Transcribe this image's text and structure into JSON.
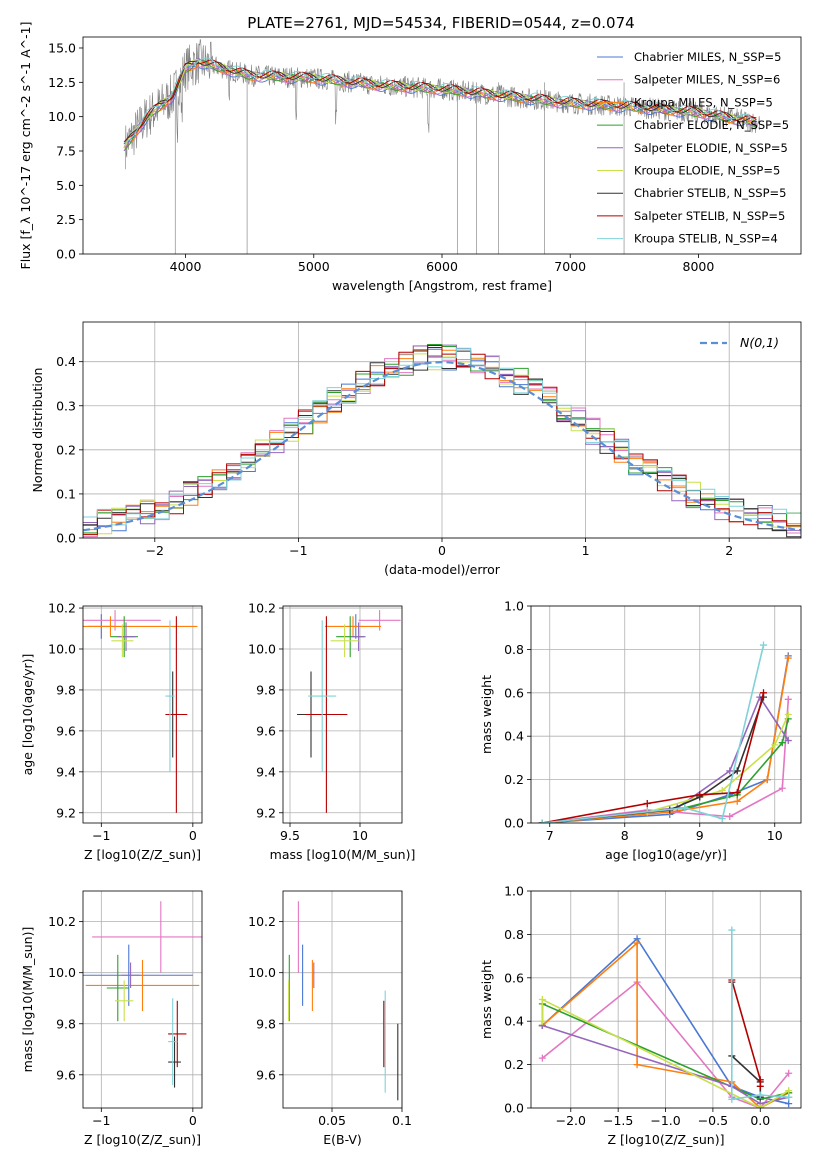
{
  "figure": {
    "title": "PLATE=2761, MJD=54534, FIBERID=0544, z=0.074"
  },
  "chart_data": [
    {
      "id": "spectrum",
      "type": "line",
      "title": "PLATE=2761, MJD=54534, FIBERID=0544, z=0.074",
      "xlabel": "wavelength [Angstrom, rest frame]",
      "ylabel": "Flux [f_λ 10^-17 erg cm^-2 s^-1 A^-1]",
      "xlim": [
        3200,
        8800
      ],
      "ylim": [
        0,
        15.8
      ],
      "xticks": [
        4000,
        5000,
        6000,
        7000,
        8000
      ],
      "yticks": [
        0.0,
        2.5,
        5.0,
        7.5,
        10.0,
        12.5,
        15.0
      ],
      "legend_placement": "upper-right",
      "series": [
        {
          "name": "Chabrier MILES, N_SSP=5",
          "color": "#4a78d4"
        },
        {
          "name": "Salpeter MILES, N_SSP=6",
          "color": "#e377c2"
        },
        {
          "name": "Kroupa MILES, N_SSP=5",
          "color": "#ff7f0e"
        },
        {
          "name": "Chabrier ELODIE, N_SSP=5",
          "color": "#2ca02c"
        },
        {
          "name": "Salpeter ELODIE, N_SSP=5",
          "color": "#9467bd"
        },
        {
          "name": "Kroupa ELODIE, N_SSP=5",
          "color": "#c9e04a"
        },
        {
          "name": "Chabrier STELIB, N_SSP=5",
          "color": "#333333"
        },
        {
          "name": "Salpeter STELIB, N_SSP=5",
          "color": "#b30000"
        },
        {
          "name": "Kroupa STELIB, N_SSP=4",
          "color": "#7fd3d8"
        }
      ],
      "continuum_x": [
        3500,
        3700,
        3900,
        4000,
        4100,
        4300,
        4500,
        5000,
        5500,
        6000,
        6500,
        7000,
        7500,
        8000,
        8500
      ],
      "continuum_y": [
        7.5,
        10.0,
        11.5,
        13.5,
        14.0,
        13.5,
        13.0,
        12.8,
        12.3,
        12.0,
        11.5,
        11.0,
        10.7,
        10.3,
        9.5
      ],
      "grid": false
    },
    {
      "id": "residual-hist",
      "type": "histogram",
      "xlabel": "(data-model)/error",
      "ylabel": "Normed distribution",
      "xlim": [
        -2.5,
        2.5
      ],
      "ylim": [
        0,
        0.49
      ],
      "xticks": [
        -2,
        -1,
        0,
        1,
        2
      ],
      "yticks": [
        0.0,
        0.1,
        0.2,
        0.3,
        0.4
      ],
      "legend": [
        "N(0,1)"
      ],
      "legend_placement": "upper-right",
      "reference_curve": "normal(0,1)",
      "bin_width": 0.1,
      "grid": true
    },
    {
      "id": "age-vs-Z",
      "type": "scatter",
      "xlabel": "Z [log10(Z/Z_sun)]",
      "ylabel": "age [log10(age/yr)]",
      "xlim": [
        -1.2,
        0.1
      ],
      "ylim": [
        9.15,
        10.21
      ],
      "xticks": [
        -1,
        0
      ],
      "yticks": [
        9.2,
        9.4,
        9.6,
        9.8,
        10.0,
        10.2
      ],
      "grid": true,
      "points": [
        {
          "series": "Chabrier MILES",
          "x": -1.0,
          "y": 10.11,
          "xerr": 0.15,
          "yerr": 0.06
        },
        {
          "series": "Salpeter MILES",
          "x": -0.85,
          "y": 10.14,
          "xerr": 0.5,
          "yerr": 0.05
        },
        {
          "series": "Kroupa MILES",
          "x": -0.9,
          "y": 10.11,
          "xerr": 0.95,
          "yerr": 0.05
        },
        {
          "series": "Chabrier ELODIE",
          "x": -0.75,
          "y": 10.06,
          "xerr": 0.15,
          "yerr": 0.1
        },
        {
          "series": "Salpeter ELODIE",
          "x": -0.73,
          "y": 10.06,
          "xerr": 0.1,
          "yerr": 0.07
        },
        {
          "series": "Kroupa ELODIE",
          "x": -0.77,
          "y": 10.04,
          "xerr": 0.12,
          "yerr": 0.08
        },
        {
          "series": "Chabrier STELIB",
          "x": -0.22,
          "y": 9.68,
          "xerr": 0.05,
          "yerr": 0.21
        },
        {
          "series": "Salpeter STELIB",
          "x": -0.18,
          "y": 9.68,
          "xerr": 0.12,
          "yerr": 0.48
        },
        {
          "series": "Kroupa STELIB",
          "x": -0.25,
          "y": 9.77,
          "xerr": 0.05,
          "yerr": 0.37
        }
      ]
    },
    {
      "id": "age-vs-mass",
      "type": "scatter",
      "xlabel": "mass [log10(M/M_sun)]",
      "xlim": [
        9.45,
        10.3
      ],
      "ylim": [
        9.15,
        10.21
      ],
      "xticks": [
        9.5,
        10.0
      ],
      "yticks": [
        9.2,
        9.4,
        9.6,
        9.8,
        10.0,
        10.2
      ],
      "grid": true,
      "points": [
        {
          "series": "Chabrier MILES",
          "x": 9.97,
          "y": 10.11,
          "xerr": 0.05,
          "yerr": 0.06
        },
        {
          "series": "Salpeter MILES",
          "x": 10.14,
          "y": 10.14,
          "xerr": 0.15,
          "yerr": 0.05
        },
        {
          "series": "Kroupa MILES",
          "x": 9.95,
          "y": 10.11,
          "xerr": 0.2,
          "yerr": 0.05
        },
        {
          "series": "Chabrier ELODIE",
          "x": 9.93,
          "y": 10.06,
          "xerr": 0.1,
          "yerr": 0.1
        },
        {
          "series": "Salpeter ELODIE",
          "x": 9.99,
          "y": 10.06,
          "xerr": 0.05,
          "yerr": 0.07
        },
        {
          "series": "Kroupa ELODIE",
          "x": 9.89,
          "y": 10.04,
          "xerr": 0.1,
          "yerr": 0.08
        },
        {
          "series": "Chabrier STELIB",
          "x": 9.65,
          "y": 9.68,
          "xerr": 0.1,
          "yerr": 0.21
        },
        {
          "series": "Salpeter STELIB",
          "x": 9.76,
          "y": 9.68,
          "xerr": 0.15,
          "yerr": 0.48
        },
        {
          "series": "Kroupa STELIB",
          "x": 9.73,
          "y": 9.77,
          "xerr": 0.1,
          "yerr": 0.37
        }
      ]
    },
    {
      "id": "weight-vs-age",
      "type": "line",
      "xlabel": "age [log10(age/yr)]",
      "ylabel": "mass weight",
      "xlim": [
        6.75,
        10.35
      ],
      "ylim": [
        0,
        1.0
      ],
      "xticks": [
        7,
        8,
        9,
        10
      ],
      "yticks": [
        0.0,
        0.2,
        0.4,
        0.6,
        0.8,
        1.0
      ],
      "grid": true,
      "series": [
        {
          "name": "Chabrier MILES",
          "x": [
            6.9,
            8.6,
            9.4,
            9.9,
            10.18
          ],
          "y": [
            0.0,
            0.04,
            0.13,
            0.2,
            0.77
          ]
        },
        {
          "name": "Salpeter MILES",
          "x": [
            6.9,
            8.3,
            9.4,
            10.1,
            10.18
          ],
          "y": [
            0.0,
            0.06,
            0.03,
            0.16,
            0.57
          ]
        },
        {
          "name": "Kroupa MILES",
          "x": [
            6.9,
            8.6,
            9.5,
            9.9,
            10.18
          ],
          "y": [
            0.0,
            0.05,
            0.1,
            0.2,
            0.76
          ]
        },
        {
          "name": "Chabrier ELODIE",
          "x": [
            6.9,
            8.8,
            9.5,
            10.1,
            10.18
          ],
          "y": [
            0.0,
            0.07,
            0.13,
            0.37,
            0.48
          ]
        },
        {
          "name": "Salpeter ELODIE",
          "x": [
            6.9,
            8.7,
            9.4,
            9.8,
            10.18
          ],
          "y": [
            0.0,
            0.07,
            0.24,
            0.58,
            0.38
          ]
        },
        {
          "name": "Kroupa ELODIE",
          "x": [
            6.9,
            8.3,
            9.3,
            10.0,
            10.18
          ],
          "y": [
            0.0,
            0.05,
            0.15,
            0.36,
            0.5
          ]
        },
        {
          "name": "Chabrier STELIB",
          "x": [
            6.9,
            8.6,
            9.0,
            9.5,
            9.85
          ],
          "y": [
            0.0,
            0.06,
            0.12,
            0.24,
            0.58
          ]
        },
        {
          "name": "Salpeter STELIB",
          "x": [
            6.9,
            8.3,
            9.0,
            9.5,
            9.85
          ],
          "y": [
            0.0,
            0.09,
            0.13,
            0.14,
            0.6
          ]
        },
        {
          "name": "Kroupa STELIB",
          "x": [
            6.9,
            8.8,
            9.3,
            9.85
          ],
          "y": [
            0.0,
            0.07,
            0.02,
            0.82
          ]
        }
      ]
    },
    {
      "id": "mass-vs-Z",
      "type": "scatter",
      "xlabel": "Z [log10(Z/Z_sun)]",
      "ylabel": "mass [log10(M/M_sun)]",
      "xlim": [
        -1.2,
        0.1
      ],
      "ylim": [
        9.47,
        10.32
      ],
      "xticks": [
        -1,
        0
      ],
      "yticks": [
        9.6,
        9.8,
        10.0,
        10.2
      ],
      "grid": true,
      "points": [
        {
          "series": "Chabrier MILES",
          "x": -0.7,
          "y": 9.99,
          "xerr": 0.7,
          "yerr": 0.12
        },
        {
          "series": "Salpeter MILES",
          "x": -0.35,
          "y": 10.14,
          "xerr": 0.75,
          "yerr": 0.14
        },
        {
          "series": "Kroupa MILES",
          "x": -0.55,
          "y": 9.95,
          "xerr": 0.62,
          "yerr": 0.1
        },
        {
          "series": "Chabrier ELODIE",
          "x": -0.82,
          "y": 9.94,
          "xerr": 0.12,
          "yerr": 0.13
        },
        {
          "series": "Salpeter ELODIE",
          "x": -0.68,
          "y": 9.99,
          "xerr": 0.1,
          "yerr": 0.05
        },
        {
          "series": "Kroupa ELODIE",
          "x": -0.75,
          "y": 9.89,
          "xerr": 0.1,
          "yerr": 0.08
        },
        {
          "series": "Chabrier STELIB",
          "x": -0.2,
          "y": 9.65,
          "xerr": 0.07,
          "yerr": 0.1
        },
        {
          "series": "Salpeter STELIB",
          "x": -0.17,
          "y": 9.76,
          "xerr": 0.1,
          "yerr": 0.13
        },
        {
          "series": "Kroupa STELIB",
          "x": -0.22,
          "y": 9.73,
          "xerr": 0.05,
          "yerr": 0.17
        }
      ]
    },
    {
      "id": "mass-vs-ebv",
      "type": "scatter",
      "xlabel": "E(B-V)",
      "xlim": [
        0.015,
        0.1
      ],
      "ylim": [
        9.47,
        10.32
      ],
      "xticks": [
        0.05,
        0.1
      ],
      "yticks": [
        9.6,
        9.8,
        10.0,
        10.2
      ],
      "grid": true,
      "points": [
        {
          "series": "Chabrier MILES",
          "x": 0.029,
          "y": 9.99,
          "yerr": 0.12
        },
        {
          "series": "Salpeter MILES",
          "x": 0.026,
          "y": 10.14,
          "yerr": 0.14
        },
        {
          "series": "Kroupa MILES",
          "x": 0.036,
          "y": 9.95,
          "yerr": 0.1
        },
        {
          "series": "Chabrier ELODIE",
          "x": 0.0195,
          "y": 9.94,
          "yerr": 0.13
        },
        {
          "series": "Salpeter ELODIE",
          "x": 0.037,
          "y": 9.99,
          "yerr": 0.05
        },
        {
          "series": "Kroupa ELODIE",
          "x": 0.019,
          "y": 9.89,
          "yerr": 0.08
        },
        {
          "series": "Chabrier STELIB",
          "x": 0.097,
          "y": 9.65,
          "yerr": 0.15
        },
        {
          "series": "Salpeter STELIB",
          "x": 0.087,
          "y": 9.76,
          "yerr": 0.13
        },
        {
          "series": "Kroupa STELIB",
          "x": 0.088,
          "y": 9.73,
          "yerr": 0.2
        }
      ]
    },
    {
      "id": "weight-vs-Z",
      "type": "line",
      "xlabel": "Z [log10(Z/Z_sun)]",
      "ylabel": "mass weight",
      "xlim": [
        -2.42,
        0.43
      ],
      "ylim": [
        0,
        1.0
      ],
      "xticks": [
        -2.0,
        -1.5,
        -1.0,
        -0.5,
        0.0
      ],
      "yticks": [
        0.0,
        0.2,
        0.4,
        0.6,
        0.8,
        1.0
      ],
      "grid": true,
      "series": [
        {
          "name": "Chabrier MILES",
          "x": [
            -2.3,
            -1.3,
            -0.3,
            0.0,
            0.3
          ],
          "y": [
            0.38,
            0.78,
            0.1,
            0.05,
            0.02
          ]
        },
        {
          "name": "Salpeter MILES",
          "x": [
            -2.3,
            -1.3,
            -0.3,
            0.0,
            0.3
          ],
          "y": [
            0.23,
            0.58,
            0.05,
            0.0,
            0.16
          ]
        },
        {
          "name": "Kroupa MILES",
          "x": [
            -2.3,
            -1.3,
            -1.3,
            -0.3,
            0.0,
            0.3
          ],
          "y": [
            0.38,
            0.76,
            0.2,
            0.12,
            0.0,
            0.07
          ]
        },
        {
          "name": "Chabrier ELODIE",
          "x": [
            -2.3,
            -2.3,
            0.0,
            0.3
          ],
          "y": [
            0.38,
            0.48,
            0.04,
            0.07
          ]
        },
        {
          "name": "Salpeter ELODIE",
          "x": [
            -2.3,
            -0.3,
            0.0,
            0.3
          ],
          "y": [
            0.38,
            0.1,
            0.02,
            0.05
          ]
        },
        {
          "name": "Kroupa ELODIE",
          "x": [
            -2.3,
            -2.3,
            0.0,
            0.3
          ],
          "y": [
            0.4,
            0.5,
            0.0,
            0.08
          ]
        },
        {
          "name": "Chabrier STELIB",
          "x": [
            -0.3,
            -0.3,
            0.0,
            0.0
          ],
          "y": [
            0.58,
            0.24,
            0.12,
            0.05
          ]
        },
        {
          "name": "Salpeter STELIB",
          "x": [
            -0.3,
            0.0,
            0.0
          ],
          "y": [
            0.59,
            0.13,
            0.1
          ]
        },
        {
          "name": "Kroupa STELIB",
          "x": [
            -0.3,
            -0.3,
            0.0,
            0.3
          ],
          "y": [
            0.82,
            0.04,
            0.06,
            0.05
          ]
        }
      ]
    }
  ]
}
